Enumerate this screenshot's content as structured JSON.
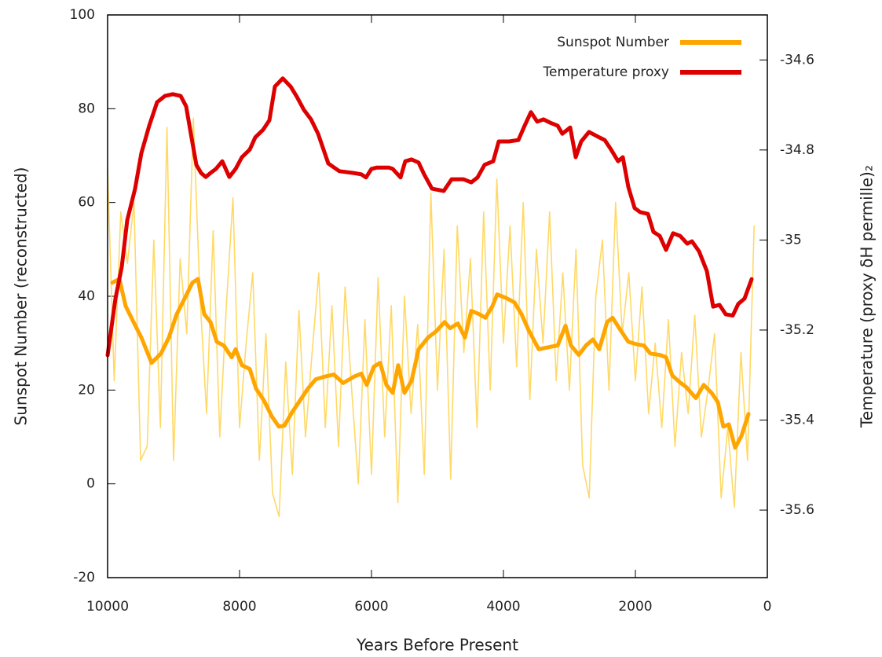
{
  "chart_data": {
    "type": "line",
    "xlabel": "Years Before Present",
    "ylabel": "Sunspot Number (reconstructed)",
    "y2label": "Temperature (proxy δH permille)₂",
    "xlim": [
      10000,
      0
    ],
    "xticks": [
      10000,
      8000,
      6000,
      4000,
      2000,
      0
    ],
    "ylim": [
      -20,
      100
    ],
    "yticks": [
      -20,
      0,
      20,
      40,
      60,
      80,
      100
    ],
    "y2lim": [
      -35.75,
      -34.5
    ],
    "y2ticks": [
      -34.6,
      -34.8,
      -35,
      -35.2,
      -35.4,
      -35.6
    ],
    "grid": false,
    "legend": "top-right",
    "series": [
      {
        "color": "#ffd966",
        "x": [
          10000,
          9900,
          9800,
          9700,
          9600,
          9500,
          9400,
          9300,
          9200,
          9100,
          9000,
          8900,
          8800,
          8700,
          8600,
          8500,
          8400,
          8300,
          8200,
          8100,
          8000,
          7900,
          7800,
          7700,
          7600,
          7500,
          7400,
          7300,
          7200,
          7100,
          7000,
          6900,
          6800,
          6700,
          6600,
          6500,
          6400,
          6300,
          6200,
          6100,
          6000,
          5900,
          5800,
          5700,
          5600,
          5500,
          5400,
          5300,
          5200,
          5100,
          5000,
          4900,
          4800,
          4700,
          4600,
          4500,
          4400,
          4300,
          4200,
          4100,
          4000,
          3900,
          3800,
          3700,
          3600,
          3500,
          3400,
          3300,
          3200,
          3100,
          3000,
          2900,
          2800,
          2700,
          2600,
          2500,
          2400,
          2300,
          2200,
          2100,
          2000,
          1900,
          1800,
          1700,
          1600,
          1500,
          1400,
          1300,
          1200,
          1100,
          1000,
          900,
          800,
          700,
          600,
          500,
          400,
          300,
          200
        ],
        "values": [
          67,
          22,
          58,
          47,
          60,
          5,
          8,
          52,
          12,
          76,
          5,
          48,
          32,
          78,
          40,
          15,
          54,
          10,
          38,
          61,
          12,
          30,
          45,
          5,
          32,
          -2,
          -7,
          26,
          2,
          37,
          10,
          28,
          45,
          12,
          38,
          8,
          42,
          20,
          0,
          35,
          2,
          44,
          10,
          38,
          -4,
          40,
          15,
          34,
          2,
          62,
          20,
          50,
          1,
          55,
          28,
          48,
          12,
          58,
          20,
          65,
          30,
          55,
          25,
          60,
          18,
          50,
          30,
          58,
          22,
          45,
          20,
          50,
          4,
          -3,
          40,
          52,
          20,
          60,
          32,
          45,
          22,
          42,
          15,
          30,
          12,
          35,
          8,
          28,
          15,
          36,
          10,
          20,
          32,
          -3,
          12,
          -5,
          28,
          5,
          55
        ]
      },
      {
        "name": "Sunspot Number",
        "color": "#ffa500",
        "x": [
          9929,
          9821,
          9726,
          9607,
          9488,
          9333,
          9190,
          9071,
          8952,
          8833,
          8714,
          8631,
          8536,
          8440,
          8345,
          8238,
          8119,
          8060,
          7964,
          7845,
          7750,
          7631,
          7512,
          7405,
          7321,
          7202,
          7083,
          6964,
          6845,
          6726,
          6571,
          6429,
          6274,
          6155,
          6071,
          5964,
          5869,
          5774,
          5679,
          5595,
          5500,
          5393,
          5286,
          5143,
          5024,
          4893,
          4810,
          4691,
          4583,
          4488,
          4369,
          4274,
          4167,
          4095,
          3952,
          3833,
          3726,
          3619,
          3464,
          3298,
          3179,
          3060,
          2976,
          2857,
          2750,
          2643,
          2548,
          2429,
          2345,
          2226,
          2107,
          1988,
          1869,
          1774,
          1631,
          1536,
          1440,
          1321,
          1226,
          1083,
          964,
          845,
          750,
          667,
          583,
          488,
          393,
          286
        ],
        "values": [
          42.9,
          43.7,
          37.9,
          34.5,
          31.2,
          25.8,
          27.8,
          31.2,
          36.2,
          39.5,
          42.9,
          43.7,
          36.2,
          34.5,
          30.3,
          29.5,
          27.0,
          28.7,
          25.3,
          24.5,
          20.3,
          17.8,
          14.4,
          12.2,
          12.4,
          15.3,
          17.8,
          20.3,
          22.3,
          22.8,
          23.3,
          21.5,
          22.8,
          23.5,
          21.1,
          25.0,
          25.8,
          21.1,
          19.4,
          25.3,
          19.4,
          22.0,
          28.7,
          31.2,
          32.5,
          34.5,
          33.2,
          34.2,
          31.2,
          36.9,
          36.2,
          35.4,
          37.9,
          40.4,
          39.6,
          38.7,
          36.2,
          32.8,
          28.7,
          29.2,
          29.5,
          33.7,
          29.5,
          27.5,
          29.5,
          30.8,
          28.7,
          34.5,
          35.4,
          32.8,
          30.3,
          29.8,
          29.5,
          27.8,
          27.5,
          27.0,
          23.1,
          21.6,
          20.6,
          18.3,
          21.1,
          19.4,
          17.4,
          12.2,
          12.7,
          7.7,
          10.2,
          14.9
        ]
      },
      {
        "name": "Temperature proxy",
        "color": "#dd0000",
        "axis": "y2",
        "x": [
          10000,
          9881,
          9786,
          9702,
          9583,
          9488,
          9369,
          9250,
          9131,
          9012,
          8893,
          8810,
          8738,
          8655,
          8583,
          8512,
          8440,
          8357,
          8262,
          8155,
          8060,
          7964,
          7845,
          7762,
          7643,
          7548,
          7464,
          7345,
          7226,
          7131,
          7024,
          6917,
          6810,
          6655,
          6488,
          6274,
          6155,
          6083,
          6000,
          5917,
          5738,
          5679,
          5560,
          5488,
          5393,
          5286,
          5202,
          5083,
          4905,
          4786,
          4607,
          4488,
          4393,
          4286,
          4155,
          4071,
          3917,
          3774,
          3679,
          3583,
          3488,
          3393,
          3298,
          3179,
          3107,
          2988,
          2905,
          2821,
          2702,
          2548,
          2464,
          2369,
          2262,
          2190,
          2107,
          2012,
          1929,
          1810,
          1726,
          1631,
          1536,
          1429,
          1321,
          1214,
          1143,
          1036,
          917,
          821,
          726,
          631,
          524,
          440,
          345,
          238
        ],
        "values": [
          -35.256,
          -35.13,
          -35.06,
          -34.956,
          -34.886,
          -34.807,
          -34.746,
          -34.694,
          -34.68,
          -34.676,
          -34.68,
          -34.703,
          -34.764,
          -34.833,
          -34.851,
          -34.86,
          -34.851,
          -34.842,
          -34.825,
          -34.86,
          -34.842,
          -34.816,
          -34.799,
          -34.772,
          -34.755,
          -34.734,
          -34.659,
          -34.641,
          -34.659,
          -34.682,
          -34.711,
          -34.732,
          -34.764,
          -34.83,
          -34.847,
          -34.851,
          -34.854,
          -34.861,
          -34.842,
          -34.839,
          -34.839,
          -34.842,
          -34.861,
          -34.825,
          -34.821,
          -34.828,
          -34.854,
          -34.886,
          -34.891,
          -34.865,
          -34.865,
          -34.872,
          -34.861,
          -34.833,
          -34.825,
          -34.781,
          -34.781,
          -34.778,
          -34.746,
          -34.716,
          -34.737,
          -34.732,
          -34.739,
          -34.746,
          -34.764,
          -34.75,
          -34.816,
          -34.781,
          -34.76,
          -34.772,
          -34.778,
          -34.799,
          -34.825,
          -34.816,
          -34.882,
          -34.929,
          -34.938,
          -34.942,
          -34.982,
          -34.991,
          -35.022,
          -34.985,
          -34.991,
          -35.008,
          -35.003,
          -35.025,
          -35.069,
          -35.148,
          -35.144,
          -35.165,
          -35.168,
          -35.142,
          -35.13,
          -35.087
        ]
      }
    ]
  }
}
